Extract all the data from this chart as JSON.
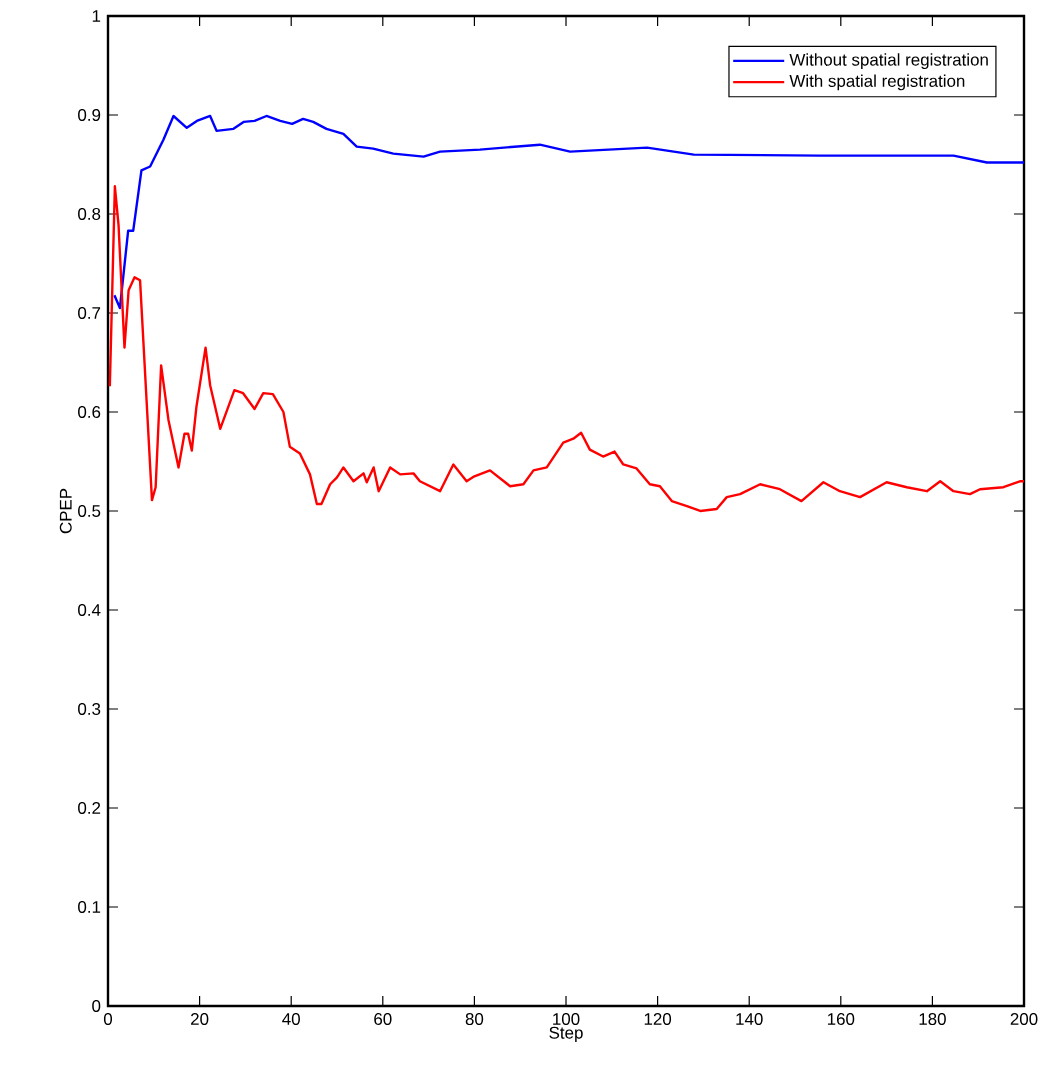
{
  "chart_data": {
    "type": "line",
    "xlabel": "Step",
    "ylabel": "CPEP",
    "xlim": [
      0,
      200
    ],
    "ylim": [
      0,
      1
    ],
    "xticks": [
      0,
      20,
      40,
      60,
      80,
      100,
      120,
      140,
      160,
      180,
      200
    ],
    "yticks": [
      0,
      0.1,
      0.2,
      0.3,
      0.4,
      0.5,
      0.6,
      0.7,
      0.8,
      0.9,
      1
    ],
    "legend": "top right",
    "grid": false,
    "marker": "none",
    "line_style": "solid",
    "series": [
      {
        "name": "Without spatial registration",
        "color": "#0000ff",
        "x": [
          1.4,
          2.6,
          4.4,
          5.5,
          7.3,
          9.2,
          12.1,
          14.3,
          17.2,
          19.4,
          22.3,
          23.7,
          27.4,
          29.6,
          32,
          34.6,
          37.6,
          40.2,
          42.6,
          44.8,
          47.7,
          51.4,
          54.3,
          57.9,
          62.3,
          68.9,
          72.5,
          81.2,
          94.3,
          100.9,
          117.7,
          127.9,
          155.5,
          184.6,
          191.9,
          200
        ],
        "values": [
          0.718,
          0.705,
          0.783,
          0.783,
          0.844,
          0.848,
          0.875,
          0.899,
          0.887,
          0.894,
          0.899,
          0.884,
          0.886,
          0.893,
          0.894,
          0.899,
          0.894,
          0.891,
          0.896,
          0.893,
          0.886,
          0.881,
          0.868,
          0.866,
          0.861,
          0.858,
          0.863,
          0.865,
          0.87,
          0.863,
          0.867,
          0.86,
          0.859,
          0.859,
          0.852,
          0.852
        ]
      },
      {
        "name": "With spatial registration",
        "color": "#ff0000",
        "x": [
          0.4,
          1.5,
          2.3,
          3.6,
          4.5,
          5.8,
          7,
          9.6,
          10.4,
          11.6,
          13.2,
          15.4,
          16.7,
          17.5,
          18.3,
          19.3,
          21.3,
          22.3,
          24.5,
          27.6,
          29.5,
          32,
          33.9,
          36,
          38.3,
          39.7,
          41.9,
          44.1,
          45.6,
          46.6,
          48.5,
          50,
          51.4,
          53.6,
          55.8,
          56.5,
          58,
          59.1,
          61.6,
          63.8,
          66.7,
          68.1,
          72.5,
          75.4,
          78.3,
          80,
          83.4,
          87.8,
          90.7,
          92.9,
          95.8,
          99.4,
          101.6,
          103.3,
          105.2,
          108.1,
          110.6,
          112.5,
          115.4,
          118.3,
          120.5,
          123.1,
          126.4,
          129.3,
          132.9,
          135.1,
          138,
          142.4,
          146.7,
          151.4,
          156.2,
          159.8,
          164.2,
          170,
          174.4,
          178.8,
          181.7,
          184.6,
          188.2,
          190.4,
          195.5,
          199.1,
          200
        ],
        "values": [
          0.626,
          0.828,
          0.789,
          0.665,
          0.723,
          0.736,
          0.733,
          0.511,
          0.524,
          0.647,
          0.592,
          0.544,
          0.578,
          0.578,
          0.561,
          0.605,
          0.665,
          0.627,
          0.583,
          0.622,
          0.619,
          0.603,
          0.619,
          0.618,
          0.6,
          0.565,
          0.558,
          0.537,
          0.507,
          0.507,
          0.527,
          0.534,
          0.544,
          0.53,
          0.538,
          0.529,
          0.544,
          0.52,
          0.544,
          0.537,
          0.538,
          0.53,
          0.52,
          0.547,
          0.53,
          0.535,
          0.541,
          0.525,
          0.527,
          0.541,
          0.544,
          0.569,
          0.573,
          0.579,
          0.562,
          0.555,
          0.56,
          0.547,
          0.543,
          0.527,
          0.525,
          0.51,
          0.505,
          0.5,
          0.502,
          0.514,
          0.517,
          0.527,
          0.522,
          0.51,
          0.529,
          0.52,
          0.514,
          0.529,
          0.524,
          0.52,
          0.53,
          0.52,
          0.517,
          0.522,
          0.524,
          0.53,
          0.53
        ]
      }
    ]
  }
}
